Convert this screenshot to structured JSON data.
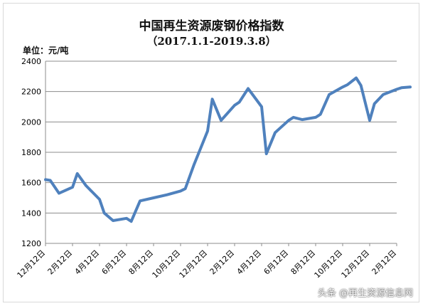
{
  "chart_data": {
    "type": "line",
    "title": "中国再生资源废钢价格指数",
    "subtitle": "（2017.1.1-2019.3.8）",
    "unit_label": "单位：元/吨",
    "ylim": [
      1200,
      2400
    ],
    "y_ticks": [
      "1200",
      "1400",
      "1600",
      "1800",
      "2000",
      "2200",
      "2400"
    ],
    "x_tick_labels": [
      "12月12日",
      "2月12日",
      "4月12日",
      "6月12日",
      "8月12日",
      "10月12日",
      "12月12日",
      "2月12日",
      "4月12日",
      "6月12日",
      "8月12日",
      "10月12日",
      "12月12日",
      "2月12日"
    ],
    "grid": true,
    "line_color": "#4f81bd",
    "series": [
      {
        "x": [
          "12月12日",
          "12月12日",
          "1月12日",
          "2月12日",
          "2月12日",
          "3月12日",
          "4月12日",
          "4月12日",
          "5月12日",
          "6月12日",
          "6月12日",
          "7月12日",
          "8月12日",
          "9月12日",
          "10月12日",
          "10月12日",
          "11月12日",
          "12月12日",
          "12月12日",
          "1月12日",
          "2月12日",
          "2月12日",
          "3月12日",
          "4月12日",
          "4月12日",
          "5月12日",
          "6月12日",
          "6月12日",
          "7月12日",
          "8月12日",
          "8月12日",
          "9月12日",
          "10月12日",
          "10月12日",
          "11月12日",
          "11月12日",
          "12月12日",
          "12月12日",
          "1月12日",
          "2月12日",
          "2月12日",
          "3月12日"
        ],
        "values": [
          1620,
          1615,
          1530,
          1570,
          1660,
          1580,
          1490,
          1400,
          1350,
          1365,
          1345,
          1480,
          1500,
          1520,
          1545,
          1560,
          1720,
          1940,
          2150,
          2010,
          2110,
          2130,
          2220,
          2100,
          1790,
          1930,
          2010,
          2030,
          2015,
          2030,
          2050,
          2180,
          2230,
          2245,
          2290,
          2240,
          2010,
          2120,
          2180,
          2215,
          2225,
          2230
        ]
      }
    ]
  },
  "watermark": "头条 @再生资源信息网"
}
